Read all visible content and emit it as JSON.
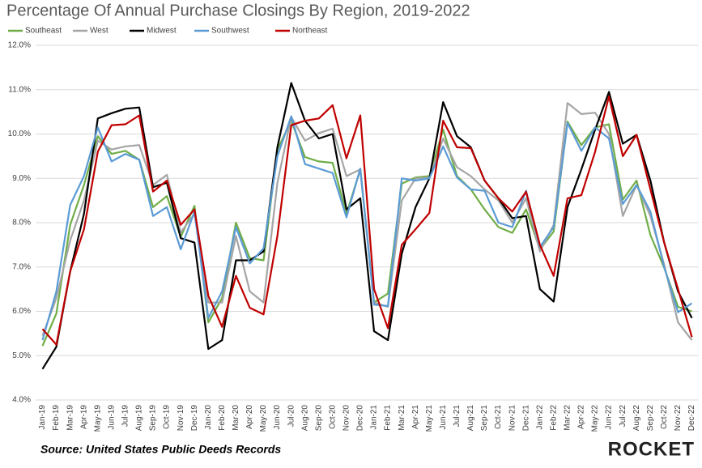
{
  "chart_data": {
    "type": "line",
    "title": "Percentage Of Annual Purchase Closings By Region, 2019-2022",
    "source": "Source: United States Public Deeds Records",
    "logo": "ROCKET",
    "categories": [
      "Jan-19",
      "Feb-19",
      "Mar-19",
      "Apr-19",
      "May-19",
      "Jun-19",
      "Jul-19",
      "Aug-19",
      "Sep-19",
      "Oct-19",
      "Nov-19",
      "Dec-19",
      "Jan-20",
      "Feb-20",
      "Mar-20",
      "Apr-20",
      "May-20",
      "Jun-20",
      "Jul-20",
      "Aug-20",
      "Sep-20",
      "Oct-20",
      "Nov-20",
      "Dec-20",
      "Jan-21",
      "Feb-21",
      "Mar-21",
      "Apr-21",
      "May-21",
      "Jun-21",
      "Jul-21",
      "Aug-21",
      "Sep-21",
      "Oct-21",
      "Nov-21",
      "Dec-21",
      "Jan-22",
      "Feb-22",
      "Mar-22",
      "Apr-22",
      "May-22",
      "Jun-22",
      "Jul-22",
      "Aug-22",
      "Sep-22",
      "Oct-22",
      "Nov-22",
      "Dec-22"
    ],
    "series": [
      {
        "name": "Southeast",
        "color": "#70ad47",
        "values": [
          5.22,
          5.95,
          7.95,
          8.85,
          9.95,
          9.55,
          9.62,
          9.42,
          8.35,
          8.6,
          7.68,
          8.38,
          5.75,
          6.3,
          8.0,
          7.2,
          7.15,
          9.65,
          10.3,
          9.48,
          9.38,
          9.35,
          8.2,
          9.2,
          6.2,
          6.4,
          8.88,
          9.02,
          9.05,
          10.1,
          9.05,
          8.75,
          8.3,
          7.9,
          7.77,
          8.3,
          7.4,
          7.8,
          10.28,
          9.75,
          10.15,
          10.22,
          8.52,
          8.95,
          7.72,
          6.98,
          6.1,
          6.0
        ]
      },
      {
        "name": "West",
        "color": "#a5a5a5",
        "values": [
          5.45,
          6.3,
          7.6,
          8.5,
          9.85,
          9.65,
          9.72,
          9.75,
          8.85,
          9.08,
          7.78,
          8.2,
          6.2,
          6.2,
          7.7,
          6.45,
          6.2,
          8.9,
          10.38,
          9.85,
          10.02,
          10.12,
          9.05,
          9.2,
          6.2,
          6.1,
          8.5,
          9.0,
          9.02,
          9.9,
          9.25,
          9.05,
          8.75,
          8.5,
          8.0,
          8.55,
          7.35,
          7.95,
          10.7,
          10.45,
          10.48,
          10.0,
          8.15,
          8.85,
          8.15,
          7.05,
          5.75,
          5.35
        ]
      },
      {
        "name": "Midwest",
        "color": "#000000",
        "values": [
          4.7,
          5.2,
          6.9,
          8.2,
          10.35,
          10.47,
          10.57,
          10.6,
          8.8,
          8.9,
          7.65,
          7.55,
          5.15,
          5.35,
          7.15,
          7.15,
          7.35,
          9.7,
          11.15,
          10.3,
          9.9,
          10.0,
          8.3,
          8.55,
          5.55,
          5.35,
          7.3,
          8.35,
          9.0,
          10.72,
          9.95,
          9.7,
          8.95,
          8.55,
          8.1,
          8.15,
          6.5,
          6.22,
          8.35,
          9.2,
          10.1,
          10.95,
          9.78,
          9.98,
          8.95,
          7.55,
          6.45,
          5.85
        ]
      },
      {
        "name": "Southwest",
        "color": "#5b9bd5",
        "values": [
          5.35,
          6.45,
          8.4,
          9.05,
          10.15,
          9.38,
          9.55,
          9.42,
          8.15,
          8.35,
          7.4,
          8.25,
          5.85,
          6.45,
          7.9,
          7.08,
          7.42,
          9.5,
          10.4,
          9.32,
          9.22,
          9.12,
          8.12,
          9.22,
          6.15,
          6.12,
          9.0,
          8.95,
          9.0,
          9.72,
          9.02,
          8.75,
          8.72,
          8.0,
          7.9,
          8.72,
          7.45,
          7.9,
          10.25,
          9.62,
          10.15,
          9.9,
          8.42,
          8.85,
          8.25,
          7.0,
          5.98,
          6.18
        ]
      },
      {
        "name": "Northeast",
        "color": "#c00000",
        "values": [
          5.6,
          5.25,
          6.9,
          7.85,
          9.6,
          10.2,
          10.22,
          10.42,
          8.7,
          8.95,
          7.95,
          8.3,
          6.35,
          5.65,
          6.8,
          6.08,
          5.93,
          7.7,
          10.2,
          10.3,
          10.35,
          10.65,
          9.45,
          10.42,
          6.5,
          5.62,
          7.5,
          7.85,
          8.22,
          10.3,
          9.7,
          9.68,
          8.95,
          8.55,
          8.25,
          8.7,
          7.5,
          6.8,
          8.55,
          8.62,
          9.6,
          10.85,
          9.5,
          9.98,
          8.75,
          7.55,
          6.5,
          5.42
        ]
      }
    ],
    "ylim": [
      4,
      12
    ],
    "yticks": [
      {
        "value": 4,
        "label": "4.0%"
      },
      {
        "value": 5,
        "label": "5.0%"
      },
      {
        "value": 6,
        "label": "6.0%"
      },
      {
        "value": 7,
        "label": "7.0%"
      },
      {
        "value": 8,
        "label": "8.0%"
      },
      {
        "value": 9,
        "label": "9.0%"
      },
      {
        "value": 10,
        "label": "10.0%"
      },
      {
        "value": 11,
        "label": "11.0%"
      },
      {
        "value": 12,
        "label": "12.0%"
      }
    ],
    "grid": true
  }
}
